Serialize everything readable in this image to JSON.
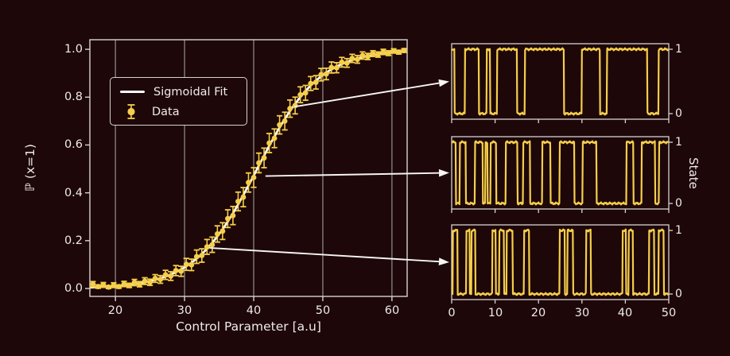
{
  "figure": {
    "background": "#1d0708",
    "accent_yellow": "#f5ce4b",
    "fit_color": "#ffffff",
    "text_color": "#efeaea",
    "spine_color": "#d8d2d2",
    "grid_color": "#8e8585",
    "arrow_color": "#f7f4f4"
  },
  "labels": {
    "state_axis": "State"
  },
  "chart_data": [
    {
      "id": "probability-vs-control",
      "type": "scatter",
      "title": "",
      "xlabel": "Control Parameter [a.u]",
      "ylabel": "ℙ (x=1)",
      "xlim": [
        16.3,
        62.2
      ],
      "ylim": [
        -0.033,
        1.04
      ],
      "xticks": [
        20,
        30,
        40,
        50,
        60
      ],
      "xtick_labels": [
        "20",
        "30",
        "40",
        "50",
        "60"
      ],
      "yticks": [
        1.0,
        0.8,
        0.6,
        0.4,
        0.2,
        0.0
      ],
      "ytick_labels": [
        "1.0",
        "0.8",
        "0.6",
        "0.4",
        "0.2",
        "0.0"
      ],
      "grid": "vertical-only",
      "legend": {
        "position": "upper-left-inset",
        "entries": [
          {
            "label": "Sigmoidal Fit",
            "style": "line",
            "color": "#ffffff"
          },
          {
            "label": "Data",
            "style": "marker-errorbar",
            "color": "#f5ce4b"
          }
        ]
      },
      "fit": {
        "model": "sigmoid",
        "x0": 40.5,
        "k": 4.5
      },
      "points": [
        [
          16.0,
          0.012,
          0.009
        ],
        [
          16.75,
          0.018,
          0.011
        ],
        [
          17.5,
          0.008,
          0.007
        ],
        [
          18.25,
          0.015,
          0.01
        ],
        [
          19.0,
          0.006,
          0.006
        ],
        [
          19.75,
          0.014,
          0.01
        ],
        [
          20.5,
          0.008,
          0.007
        ],
        [
          21.25,
          0.019,
          0.011
        ],
        [
          22.0,
          0.013,
          0.009
        ],
        [
          22.75,
          0.025,
          0.013
        ],
        [
          23.5,
          0.018,
          0.011
        ],
        [
          24.25,
          0.031,
          0.014
        ],
        [
          25.0,
          0.026,
          0.013
        ],
        [
          25.75,
          0.042,
          0.016
        ],
        [
          26.5,
          0.038,
          0.016
        ],
        [
          27.25,
          0.057,
          0.019
        ],
        [
          28.0,
          0.052,
          0.018
        ],
        [
          28.75,
          0.075,
          0.021
        ],
        [
          29.5,
          0.072,
          0.021
        ],
        [
          30.25,
          0.101,
          0.025
        ],
        [
          31.0,
          0.099,
          0.024
        ],
        [
          31.75,
          0.133,
          0.028
        ],
        [
          32.5,
          0.138,
          0.028
        ],
        [
          33.25,
          0.174,
          0.031
        ],
        [
          34.0,
          0.183,
          0.032
        ],
        [
          34.75,
          0.228,
          0.034
        ],
        [
          35.5,
          0.24,
          0.035
        ],
        [
          36.25,
          0.292,
          0.037
        ],
        [
          37.0,
          0.305,
          0.038
        ],
        [
          37.75,
          0.364,
          0.039
        ],
        [
          38.5,
          0.382,
          0.04
        ],
        [
          39.25,
          0.443,
          0.04
        ],
        [
          40.0,
          0.464,
          0.041
        ],
        [
          40.75,
          0.525,
          0.041
        ],
        [
          41.5,
          0.546,
          0.041
        ],
        [
          42.25,
          0.608,
          0.04
        ],
        [
          43.0,
          0.628,
          0.039
        ],
        [
          43.75,
          0.684,
          0.038
        ],
        [
          44.5,
          0.7,
          0.037
        ],
        [
          45.25,
          0.752,
          0.036
        ],
        [
          46.0,
          0.765,
          0.035
        ],
        [
          46.75,
          0.81,
          0.033
        ],
        [
          47.5,
          0.818,
          0.031
        ],
        [
          48.25,
          0.857,
          0.029
        ],
        [
          49.0,
          0.862,
          0.028
        ],
        [
          49.75,
          0.894,
          0.026
        ],
        [
          50.5,
          0.897,
          0.024
        ],
        [
          51.25,
          0.924,
          0.023
        ],
        [
          52.0,
          0.923,
          0.021
        ],
        [
          52.75,
          0.946,
          0.02
        ],
        [
          53.5,
          0.943,
          0.018
        ],
        [
          54.25,
          0.962,
          0.017
        ],
        [
          55.0,
          0.958,
          0.016
        ],
        [
          55.75,
          0.974,
          0.015
        ],
        [
          56.5,
          0.97,
          0.013
        ],
        [
          57.25,
          0.982,
          0.012
        ],
        [
          58.0,
          0.978,
          0.011
        ],
        [
          58.75,
          0.989,
          0.011
        ],
        [
          59.5,
          0.984,
          0.01
        ],
        [
          60.25,
          0.993,
          0.009
        ],
        [
          61.0,
          0.988,
          0.008
        ],
        [
          61.75,
          0.995,
          0.008
        ]
      ]
    },
    {
      "id": "trace-high-probability",
      "type": "line",
      "x_range": [
        0,
        50
      ],
      "ytick_labels": [
        "1",
        "0"
      ],
      "high_intervals": [
        [
          0,
          0.6
        ],
        [
          3.1,
          6.2
        ],
        [
          8.0,
          8.8
        ],
        [
          10.4,
          15.0
        ],
        [
          16.8,
          25.9
        ],
        [
          30.0,
          34.2
        ],
        [
          35.8,
          45.1
        ],
        [
          47.7,
          50
        ]
      ]
    },
    {
      "id": "trace-mid-probability",
      "type": "line",
      "x_range": [
        0,
        50
      ],
      "ytick_labels": [
        "1",
        "0"
      ],
      "high_intervals": [
        [
          0,
          0.9
        ],
        [
          1.9,
          3.3
        ],
        [
          5.3,
          7.1
        ],
        [
          7.7,
          8.2
        ],
        [
          8.9,
          10.2
        ],
        [
          12.4,
          15.1
        ],
        [
          16.4,
          18.0
        ],
        [
          20.9,
          22.8
        ],
        [
          24.9,
          28.3
        ],
        [
          30.2,
          33.4
        ],
        [
          40.3,
          41.9
        ],
        [
          43.8,
          46.9
        ],
        [
          47.8,
          50
        ]
      ]
    },
    {
      "id": "trace-low-probability",
      "type": "line",
      "x_range": [
        0,
        50
      ],
      "xtick_labels": [
        "0",
        "10",
        "20",
        "30",
        "40",
        "50"
      ],
      "xticks": [
        0,
        10,
        20,
        30,
        40,
        50
      ],
      "ytick_labels": [
        "1",
        "0"
      ],
      "high_intervals": [
        [
          0.3,
          1.3
        ],
        [
          3.4,
          4.2
        ],
        [
          4.6,
          5.4
        ],
        [
          9.3,
          10.1
        ],
        [
          10.9,
          12.0
        ],
        [
          12.6,
          14.0
        ],
        [
          16.6,
          17.8
        ],
        [
          24.9,
          26.1
        ],
        [
          26.7,
          28.0
        ],
        [
          31.0,
          32.1
        ],
        [
          39.4,
          40.2
        ],
        [
          40.8,
          41.8
        ],
        [
          45.5,
          46.7
        ],
        [
          47.7,
          48.9
        ]
      ]
    }
  ],
  "arrows": [
    {
      "from_x": 45.9,
      "from_y": 0.76,
      "to_panel": 0
    },
    {
      "from_x": 41.7,
      "from_y": 0.47,
      "to_panel": 1
    },
    {
      "from_x": 33.6,
      "from_y": 0.17,
      "to_panel": 2
    }
  ]
}
